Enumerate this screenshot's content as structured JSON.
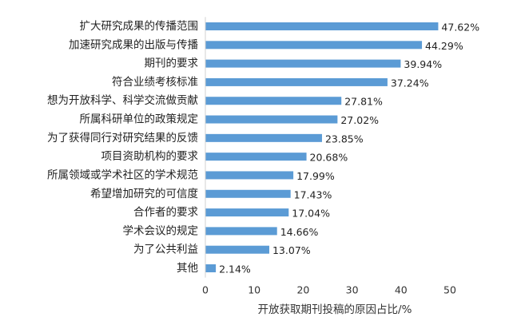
{
  "chart_data": {
    "type": "bar",
    "orientation": "horizontal",
    "categories": [
      "扩大研究成果的传播范围",
      "加速研究成果的出版与传播",
      "期刊的要求",
      "符合业绩考核标准",
      "想为开放科学、科学交流做贡献",
      "所属科研单位的政策规定",
      "为了获得同行对研究结果的反馈",
      "项目资助机构的要求",
      "所属领域或学术社区的学术规范",
      "希望增加研究的可信度",
      "合作者的要求",
      "学术会议的规定",
      "为了公共利益",
      "其他"
    ],
    "values": [
      47.62,
      44.29,
      39.94,
      37.24,
      27.81,
      27.02,
      23.85,
      20.68,
      17.99,
      17.43,
      17.04,
      14.66,
      13.07,
      2.14
    ],
    "value_labels": [
      "47.62%",
      "44.29%",
      "39.94%",
      "37.24%",
      "27.81%",
      "27.02%",
      "23.85%",
      "20.68%",
      "17.99%",
      "17.43%",
      "17.04%",
      "14.66%",
      "13.07%",
      "2.14%"
    ],
    "xlabel": "开放获取期刊投稿的原因占比/%",
    "ylabel": "",
    "xlim": [
      0,
      50
    ],
    "x_ticks": [
      "0",
      "10",
      "20",
      "30",
      "40",
      "50"
    ],
    "grid": false,
    "legend": "none",
    "bar_color": "#5b9bd5"
  }
}
